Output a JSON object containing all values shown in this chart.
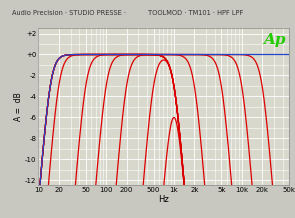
{
  "title_left": "Audio Precision · STUDIO PRESSE ·",
  "title_right": "TOOLMOD · TM101 · HPF LPF",
  "xlabel": "Hz",
  "ylabel": "A =  dB",
  "bg_color": "#c8c8c0",
  "plot_bg": "#d8d8cc",
  "grid_color": "#ffffff",
  "ylim": [
    -12.5,
    2.5
  ],
  "yticks": [
    2,
    0,
    -2,
    -4,
    -6,
    -8,
    -10,
    -12
  ],
  "ytick_labels": [
    "+2",
    "+0",
    "-2",
    "-4",
    "-6",
    "-8",
    "-10",
    "-12"
  ],
  "xmin": 10,
  "xmax": 50000,
  "xticks": [
    10,
    20,
    50,
    100,
    200,
    500,
    1000,
    2000,
    5000,
    10000,
    20000,
    50000
  ],
  "xtick_labels": [
    "10",
    "20",
    "50",
    "100",
    "200",
    "500",
    "1k",
    "2k",
    "5k",
    "10k",
    "20k",
    "50k"
  ],
  "ap_color": "#22cc00",
  "line_color_red": "#dd0000",
  "line_color_blue": "#2244cc",
  "filter_order": 4,
  "blue_hpf_fc": 15,
  "red_hpf_fcs": [
    20,
    50,
    100,
    200,
    500,
    1000
  ],
  "red_lpf_fcs": [
    1000,
    2000,
    5000,
    10000,
    20000
  ],
  "red_lpf_fixed": 1000,
  "red_hpf_fixed": 15
}
